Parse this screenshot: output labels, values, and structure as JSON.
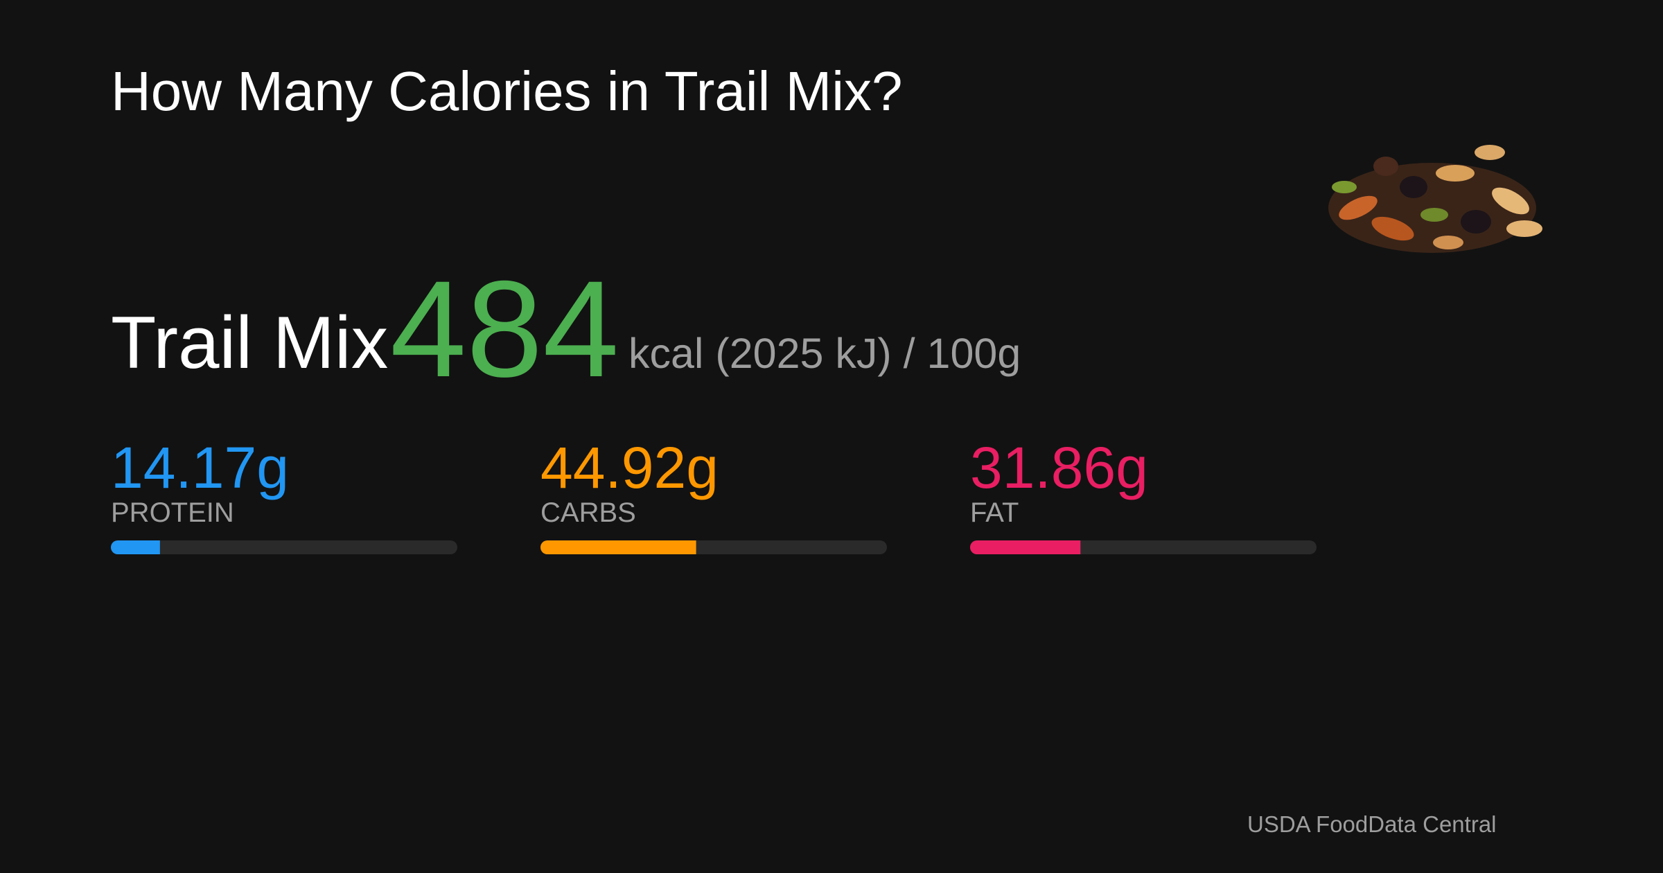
{
  "header": {
    "title": "How Many Calories in Trail Mix?"
  },
  "summary": {
    "food": "Trail Mix",
    "calories": 484,
    "unit_label": "kcal (2025 kJ) / 100g",
    "color": "#4caf50"
  },
  "macros": {
    "xlim": [
      0,
      100
    ],
    "items": [
      {
        "name": "PROTEIN",
        "value": 14.17,
        "value_label": "14.17g",
        "color": "#2196f3"
      },
      {
        "name": "CARBS",
        "value": 44.92,
        "value_label": "44.92g",
        "color": "#ff9800"
      },
      {
        "name": "FAT",
        "value": 31.86,
        "value_label": "31.86g",
        "color": "#e91e63"
      }
    ]
  },
  "footer": {
    "source": "USDA FoodData Central"
  }
}
